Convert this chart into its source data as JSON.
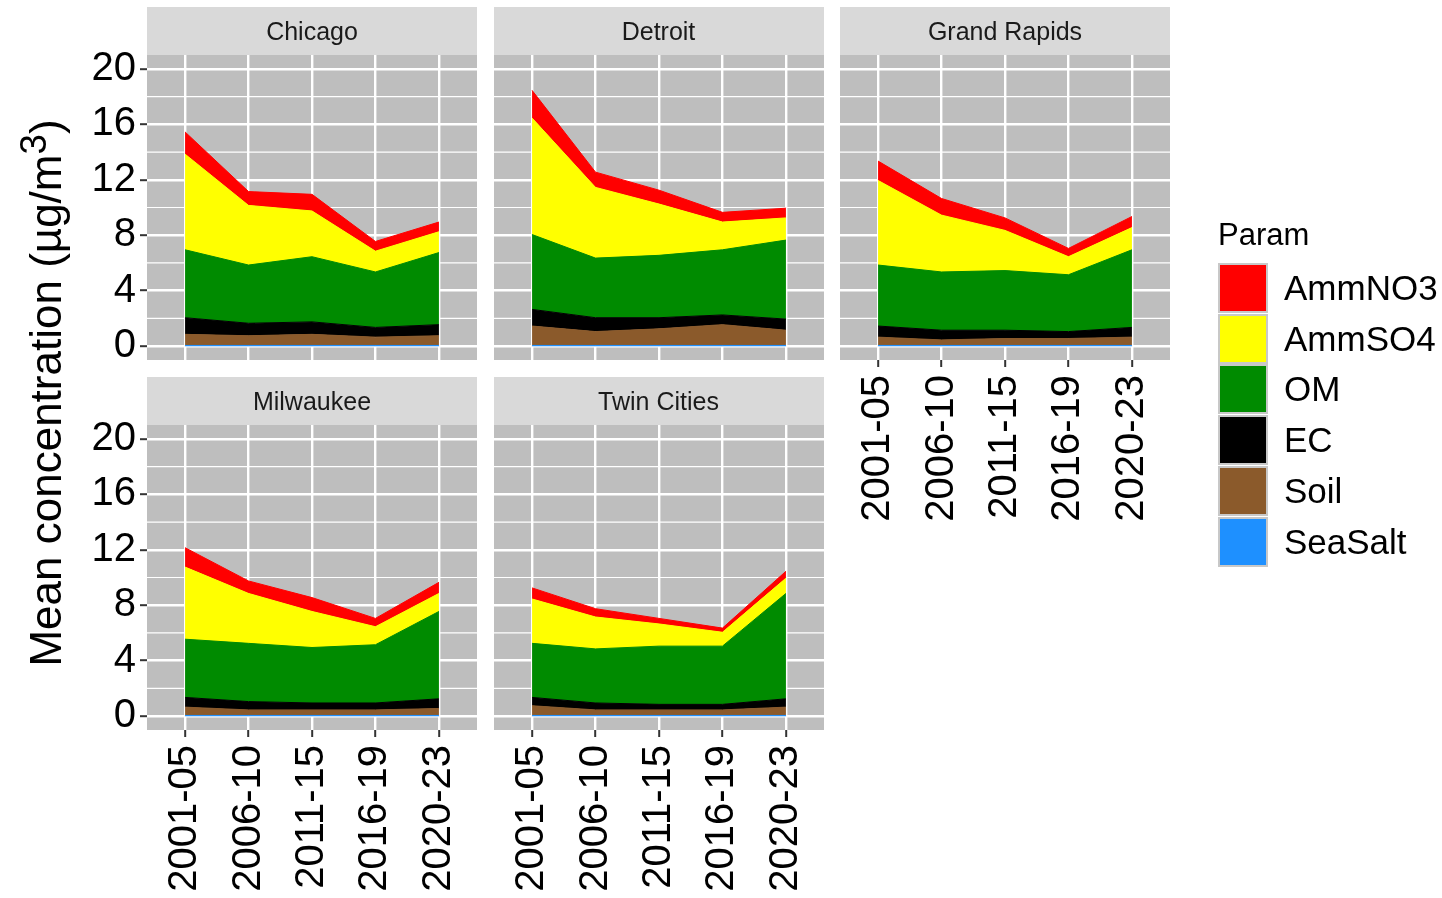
{
  "chart_data": [
    {
      "type": "area",
      "title": "Chicago",
      "ylabel": "Mean concentration (µg/m$^{3}$)",
      "legend": "right",
      "legend_title": "Param",
      "categories": [
        "2001-05",
        "2006-10",
        "2011-15",
        "2016-19",
        "2020-23"
      ],
      "stacked": true,
      "ylim": [
        -1,
        21
      ],
      "yticks": [
        0,
        4,
        8,
        12,
        16,
        20
      ],
      "grid": true,
      "tick_labels": "y",
      "series": [
        {
          "name": "SeaSalt",
          "color": "#1e90ff",
          "values": [
            0.05,
            0.05,
            0.05,
            0.05,
            0.05
          ]
        },
        {
          "name": "Soil",
          "color": "#8b5a2b",
          "values": [
            0.8,
            0.7,
            0.8,
            0.6,
            0.7
          ]
        },
        {
          "name": "EC",
          "color": "#000000",
          "values": [
            1.2,
            0.9,
            0.9,
            0.7,
            0.8
          ]
        },
        {
          "name": "OM",
          "color": "#008b00",
          "values": [
            4.9,
            4.2,
            4.7,
            4.0,
            5.2
          ]
        },
        {
          "name": "AmmSO4",
          "color": "#ffff00",
          "values": [
            6.9,
            4.3,
            3.3,
            1.5,
            1.5
          ]
        },
        {
          "name": "AmmNO3",
          "color": "#ff0000",
          "values": [
            1.6,
            1.0,
            1.2,
            0.7,
            0.7
          ]
        }
      ]
    },
    {
      "type": "area",
      "title": "Detroit",
      "categories": [
        "2001-05",
        "2006-10",
        "2011-15",
        "2016-19",
        "2020-23"
      ],
      "stacked": true,
      "ylim": [
        -1,
        21
      ],
      "yticks": [
        0,
        4,
        8,
        12,
        16,
        20
      ],
      "grid": true,
      "tick_labels": false,
      "series": [
        {
          "name": "SeaSalt",
          "color": "#1e90ff",
          "values": [
            0.05,
            0.05,
            0.05,
            0.05,
            0.05
          ]
        },
        {
          "name": "Soil",
          "color": "#8b5a2b",
          "values": [
            1.4,
            1.0,
            1.2,
            1.5,
            1.1
          ]
        },
        {
          "name": "EC",
          "color": "#000000",
          "values": [
            1.2,
            1.0,
            0.8,
            0.7,
            0.8
          ]
        },
        {
          "name": "OM",
          "color": "#008b00",
          "values": [
            5.4,
            4.3,
            4.5,
            4.7,
            5.7
          ]
        },
        {
          "name": "AmmSO4",
          "color": "#ffff00",
          "values": [
            8.4,
            5.1,
            3.7,
            2.0,
            1.6
          ]
        },
        {
          "name": "AmmNO3",
          "color": "#ff0000",
          "values": [
            2.0,
            1.1,
            1.0,
            0.7,
            0.7
          ]
        }
      ]
    },
    {
      "type": "area",
      "title": "Grand Rapids",
      "categories": [
        "2001-05",
        "2006-10",
        "2011-15",
        "2016-19",
        "2020-23"
      ],
      "stacked": true,
      "ylim": [
        -1,
        21
      ],
      "yticks": [
        0,
        4,
        8,
        12,
        16,
        20
      ],
      "grid": true,
      "tick_labels": "x",
      "series": [
        {
          "name": "SeaSalt",
          "color": "#1e90ff",
          "values": [
            0.05,
            0.05,
            0.05,
            0.05,
            0.05
          ]
        },
        {
          "name": "Soil",
          "color": "#8b5a2b",
          "values": [
            0.6,
            0.4,
            0.5,
            0.5,
            0.6
          ]
        },
        {
          "name": "EC",
          "color": "#000000",
          "values": [
            0.8,
            0.7,
            0.6,
            0.5,
            0.7
          ]
        },
        {
          "name": "OM",
          "color": "#008b00",
          "values": [
            4.4,
            4.2,
            4.3,
            4.1,
            5.6
          ]
        },
        {
          "name": "AmmSO4",
          "color": "#ffff00",
          "values": [
            6.1,
            4.1,
            2.9,
            1.3,
            1.6
          ]
        },
        {
          "name": "AmmNO3",
          "color": "#ff0000",
          "values": [
            1.4,
            1.2,
            0.9,
            0.6,
            0.8
          ]
        }
      ]
    },
    {
      "type": "area",
      "title": "Milwaukee",
      "categories": [
        "2001-05",
        "2006-10",
        "2011-15",
        "2016-19",
        "2020-23"
      ],
      "stacked": true,
      "ylim": [
        -1,
        21
      ],
      "yticks": [
        0,
        4,
        8,
        12,
        16,
        20
      ],
      "grid": true,
      "series": [
        {
          "name": "SeaSalt",
          "color": "#1e90ff",
          "values": [
            0.05,
            0.05,
            0.05,
            0.05,
            0.05
          ]
        },
        {
          "name": "Soil",
          "color": "#8b5a2b",
          "values": [
            0.6,
            0.4,
            0.4,
            0.4,
            0.5
          ]
        },
        {
          "name": "EC",
          "color": "#000000",
          "values": [
            0.7,
            0.6,
            0.5,
            0.5,
            0.7
          ]
        },
        {
          "name": "OM",
          "color": "#008b00",
          "values": [
            4.2,
            4.2,
            4.0,
            4.2,
            6.3
          ]
        },
        {
          "name": "AmmSO4",
          "color": "#ffff00",
          "values": [
            5.2,
            3.6,
            2.6,
            1.3,
            1.3
          ]
        },
        {
          "name": "AmmNO3",
          "color": "#ff0000",
          "values": [
            1.4,
            0.9,
            1.0,
            0.6,
            0.8
          ]
        }
      ]
    },
    {
      "type": "area",
      "title": "Twin Cities",
      "categories": [
        "2001-05",
        "2006-10",
        "2011-15",
        "2016-19",
        "2020-23"
      ],
      "stacked": true,
      "ylim": [
        -1,
        21
      ],
      "yticks": [
        0,
        4,
        8,
        12,
        16,
        20
      ],
      "grid": true,
      "tick_labels": "x",
      "series": [
        {
          "name": "SeaSalt",
          "color": "#1e90ff",
          "values": [
            0.05,
            0.05,
            0.05,
            0.05,
            0.05
          ]
        },
        {
          "name": "Soil",
          "color": "#8b5a2b",
          "values": [
            0.7,
            0.4,
            0.4,
            0.4,
            0.6
          ]
        },
        {
          "name": "EC",
          "color": "#000000",
          "values": [
            0.6,
            0.5,
            0.4,
            0.4,
            0.6
          ]
        },
        {
          "name": "OM",
          "color": "#008b00",
          "values": [
            3.9,
            3.9,
            4.2,
            4.2,
            7.6
          ]
        },
        {
          "name": "AmmSO4",
          "color": "#ffff00",
          "values": [
            3.2,
            2.3,
            1.6,
            1.0,
            1.1
          ]
        },
        {
          "name": "AmmNO3",
          "color": "#ff0000",
          "values": [
            0.8,
            0.6,
            0.4,
            0.3,
            0.5
          ]
        }
      ]
    }
  ]
}
